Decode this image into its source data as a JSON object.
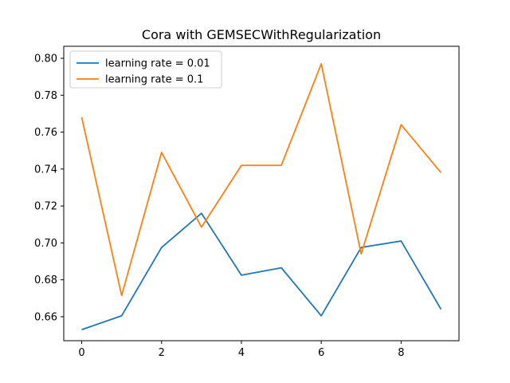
{
  "chart_data": {
    "type": "line",
    "title": "Cora with GEMSECWithRegularization",
    "xlabel": "",
    "ylabel": "",
    "x": [
      0,
      1,
      2,
      3,
      4,
      5,
      6,
      7,
      8,
      9
    ],
    "xlim": [
      -0.45,
      9.45
    ],
    "ylim": [
      0.647,
      0.8065
    ],
    "xticks": [
      0,
      2,
      4,
      6,
      8
    ],
    "xtick_labels": [
      "0",
      "2",
      "4",
      "6",
      "8"
    ],
    "yticks": [
      0.66,
      0.68,
      0.7,
      0.72,
      0.74,
      0.76,
      0.78,
      0.8
    ],
    "ytick_labels": [
      "0.66",
      "0.68",
      "0.70",
      "0.72",
      "0.74",
      "0.76",
      "0.78",
      "0.80"
    ],
    "grid": false,
    "legend_position": "upper-left",
    "series": [
      {
        "name": "learning rate = 0.01",
        "color": "#1f77b4",
        "values": [
          0.653,
          0.6605,
          0.6975,
          0.716,
          0.6825,
          0.6865,
          0.6605,
          0.6975,
          0.701,
          0.664
        ]
      },
      {
        "name": "learning rate = 0.1",
        "color": "#ff7f0e",
        "values": [
          0.768,
          0.6715,
          0.749,
          0.7085,
          0.742,
          0.742,
          0.797,
          0.694,
          0.764,
          0.738
        ]
      }
    ]
  }
}
